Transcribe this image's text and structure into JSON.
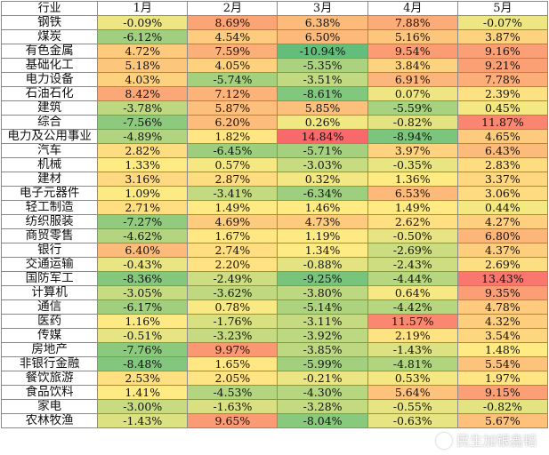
{
  "chart_data": {
    "type": "table",
    "title": "",
    "header": {
      "industry": "行业",
      "months": [
        "1月",
        "2月",
        "3月",
        "4月",
        "5月"
      ]
    },
    "rows": [
      {
        "industry": "钢铁",
        "values": [
          -0.09,
          8.69,
          6.38,
          7.88,
          -0.07
        ]
      },
      {
        "industry": "煤炭",
        "values": [
          -6.12,
          4.54,
          6.5,
          5.16,
          3.87
        ]
      },
      {
        "industry": "有色金属",
        "values": [
          4.72,
          7.59,
          -10.94,
          9.54,
          9.16
        ]
      },
      {
        "industry": "基础化工",
        "values": [
          5.18,
          4.05,
          -5.35,
          3.84,
          9.21
        ]
      },
      {
        "industry": "电力设备",
        "values": [
          4.03,
          -5.74,
          -3.51,
          6.91,
          7.78
        ]
      },
      {
        "industry": "石油石化",
        "values": [
          8.42,
          7.12,
          -8.61,
          0.07,
          2.39
        ]
      },
      {
        "industry": "建筑",
        "values": [
          -3.78,
          5.87,
          5.85,
          -5.59,
          0.45
        ]
      },
      {
        "industry": "综合",
        "values": [
          -7.56,
          6.2,
          0.26,
          -0.82,
          11.87
        ]
      },
      {
        "industry": "电力及公用事业",
        "values": [
          -4.89,
          1.82,
          14.84,
          -8.94,
          4.65
        ]
      },
      {
        "industry": "汽车",
        "values": [
          2.82,
          -6.45,
          -5.71,
          3.97,
          6.43
        ]
      },
      {
        "industry": "机械",
        "values": [
          1.33,
          0.57,
          -3.03,
          -0.35,
          2.83
        ]
      },
      {
        "industry": "建材",
        "values": [
          3.16,
          2.87,
          0.32,
          1.36,
          3.37
        ]
      },
      {
        "industry": "电子元器件",
        "values": [
          1.09,
          -3.41,
          -6.34,
          6.53,
          3.06
        ]
      },
      {
        "industry": "轻工制造",
        "values": [
          2.71,
          1.49,
          1.46,
          1.49,
          0.44
        ]
      },
      {
        "industry": "纺织服装",
        "values": [
          -7.27,
          4.69,
          4.73,
          2.62,
          4.27
        ]
      },
      {
        "industry": "商贸零售",
        "values": [
          -4.62,
          1.67,
          1.19,
          -0.5,
          6.8
        ]
      },
      {
        "industry": "银行",
        "values": [
          6.4,
          2.74,
          1.34,
          -2.69,
          4.37
        ]
      },
      {
        "industry": "交通运输",
        "values": [
          -0.43,
          2.2,
          -0.88,
          -2.43,
          2.69
        ]
      },
      {
        "industry": "国防军工",
        "values": [
          -8.36,
          -2.49,
          -9.25,
          -4.44,
          13.43
        ]
      },
      {
        "industry": "计算机",
        "values": [
          -3.05,
          -3.62,
          -3.8,
          0.64,
          9.35
        ]
      },
      {
        "industry": "通信",
        "values": [
          -6.17,
          0.78,
          -5.14,
          -4.42,
          4.78
        ]
      },
      {
        "industry": "医药",
        "values": [
          1.16,
          -1.76,
          -3.11,
          11.57,
          4.32
        ]
      },
      {
        "industry": "传媒",
        "values": [
          -0.51,
          -3.23,
          -3.92,
          2.19,
          3.54
        ]
      },
      {
        "industry": "房地产",
        "values": [
          -7.76,
          9.97,
          -3.85,
          -1.43,
          1.48
        ]
      },
      {
        "industry": "非银行金融",
        "values": [
          -8.48,
          1.65,
          -5.99,
          -4.81,
          5.54
        ]
      },
      {
        "industry": "餐饮旅游",
        "values": [
          2.53,
          2.05,
          -0.21,
          0.53,
          1.97
        ]
      },
      {
        "industry": "食品饮料",
        "values": [
          1.41,
          -4.53,
          -4.3,
          5.64,
          9.15
        ]
      },
      {
        "industry": "家电",
        "values": [
          -3.0,
          -1.63,
          -3.28,
          -0.55,
          -0.82
        ]
      },
      {
        "industry": "农林牧渔",
        "values": [
          -1.43,
          9.65,
          -8.04,
          -0.63,
          5.67
        ]
      }
    ],
    "value_format": "percent_2dp",
    "color_scale": {
      "negative": "#63be7b",
      "mid": "#ffeb84",
      "positive": "#f8696b"
    }
  },
  "watermark": {
    "text": "民生加银鑫韬"
  }
}
